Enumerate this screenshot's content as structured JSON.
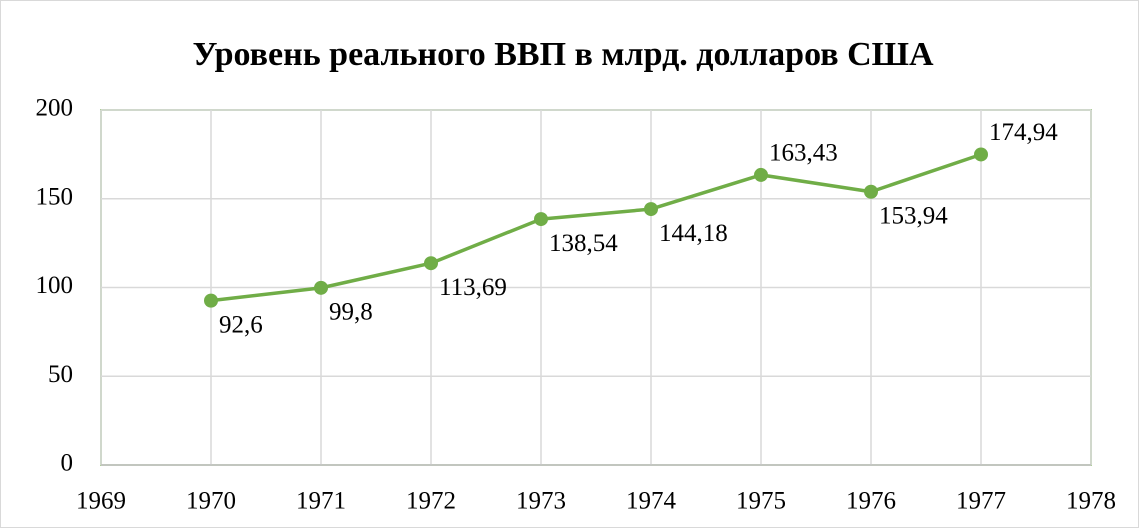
{
  "chart_data": {
    "type": "line",
    "title": "Уровень реального ВВП в млрд. долларов США",
    "x": [
      1970,
      1971,
      1972,
      1973,
      1974,
      1975,
      1976,
      1977
    ],
    "series": [
      {
        "color": "#70ad47",
        "values": [
          92.6,
          99.8,
          113.69,
          138.54,
          144.18,
          163.43,
          153.94,
          174.94
        ],
        "value_labels": [
          "92,6",
          "99,8",
          "113,69",
          "138,54",
          "144,18",
          "163,43",
          "153,94",
          "174,94"
        ]
      }
    ],
    "xlim": [
      1969,
      1978
    ],
    "xticks": [
      1969,
      1970,
      1971,
      1972,
      1973,
      1974,
      1975,
      1976,
      1977,
      1978
    ],
    "ylim": [
      0,
      200
    ],
    "yticks": [
      0,
      50,
      100,
      150,
      200
    ],
    "grid": true
  }
}
